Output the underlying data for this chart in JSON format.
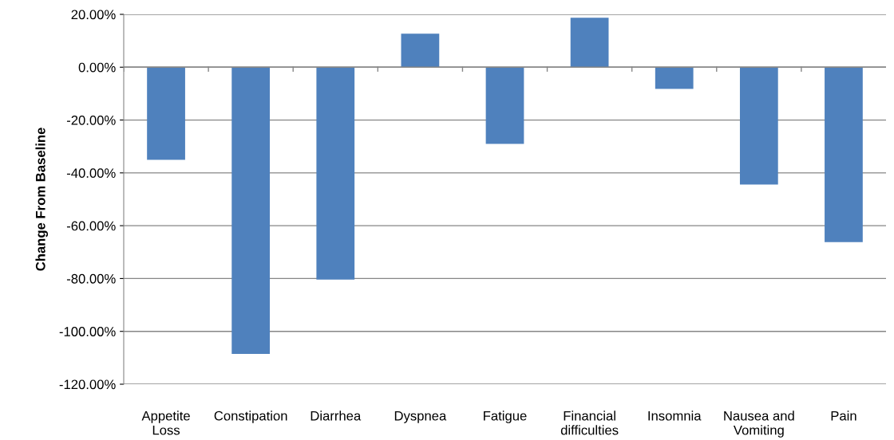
{
  "chart_data": {
    "type": "bar",
    "ylabel": "Change From Baseline",
    "categories": [
      "Appetite\nLoss",
      "Constipation",
      "Diarrhea",
      "Dyspnea",
      "Fatigue",
      "Financial\ndifficulties",
      "Insomnia",
      "Nausea and\nVomiting",
      "Pain"
    ],
    "values": [
      -35.1,
      -108.5,
      -80.4,
      12.7,
      -29,
      18.7,
      -8.2,
      -44.4,
      -66.2
    ],
    "color": "#4f81bd",
    "ylim": [
      -120,
      20
    ],
    "yticks": [
      {
        "value": 20,
        "label": "20.00%"
      },
      {
        "value": 0,
        "label": "0.00%"
      },
      {
        "value": -20,
        "label": "-20.00%"
      },
      {
        "value": -40,
        "label": "-40.00%"
      },
      {
        "value": -60,
        "label": "-60.00%"
      },
      {
        "value": -80,
        "label": "-80.00%"
      },
      {
        "value": -100,
        "label": "-100.00%"
      },
      {
        "value": -120,
        "label": "-120.00%"
      }
    ],
    "grid": "y"
  }
}
